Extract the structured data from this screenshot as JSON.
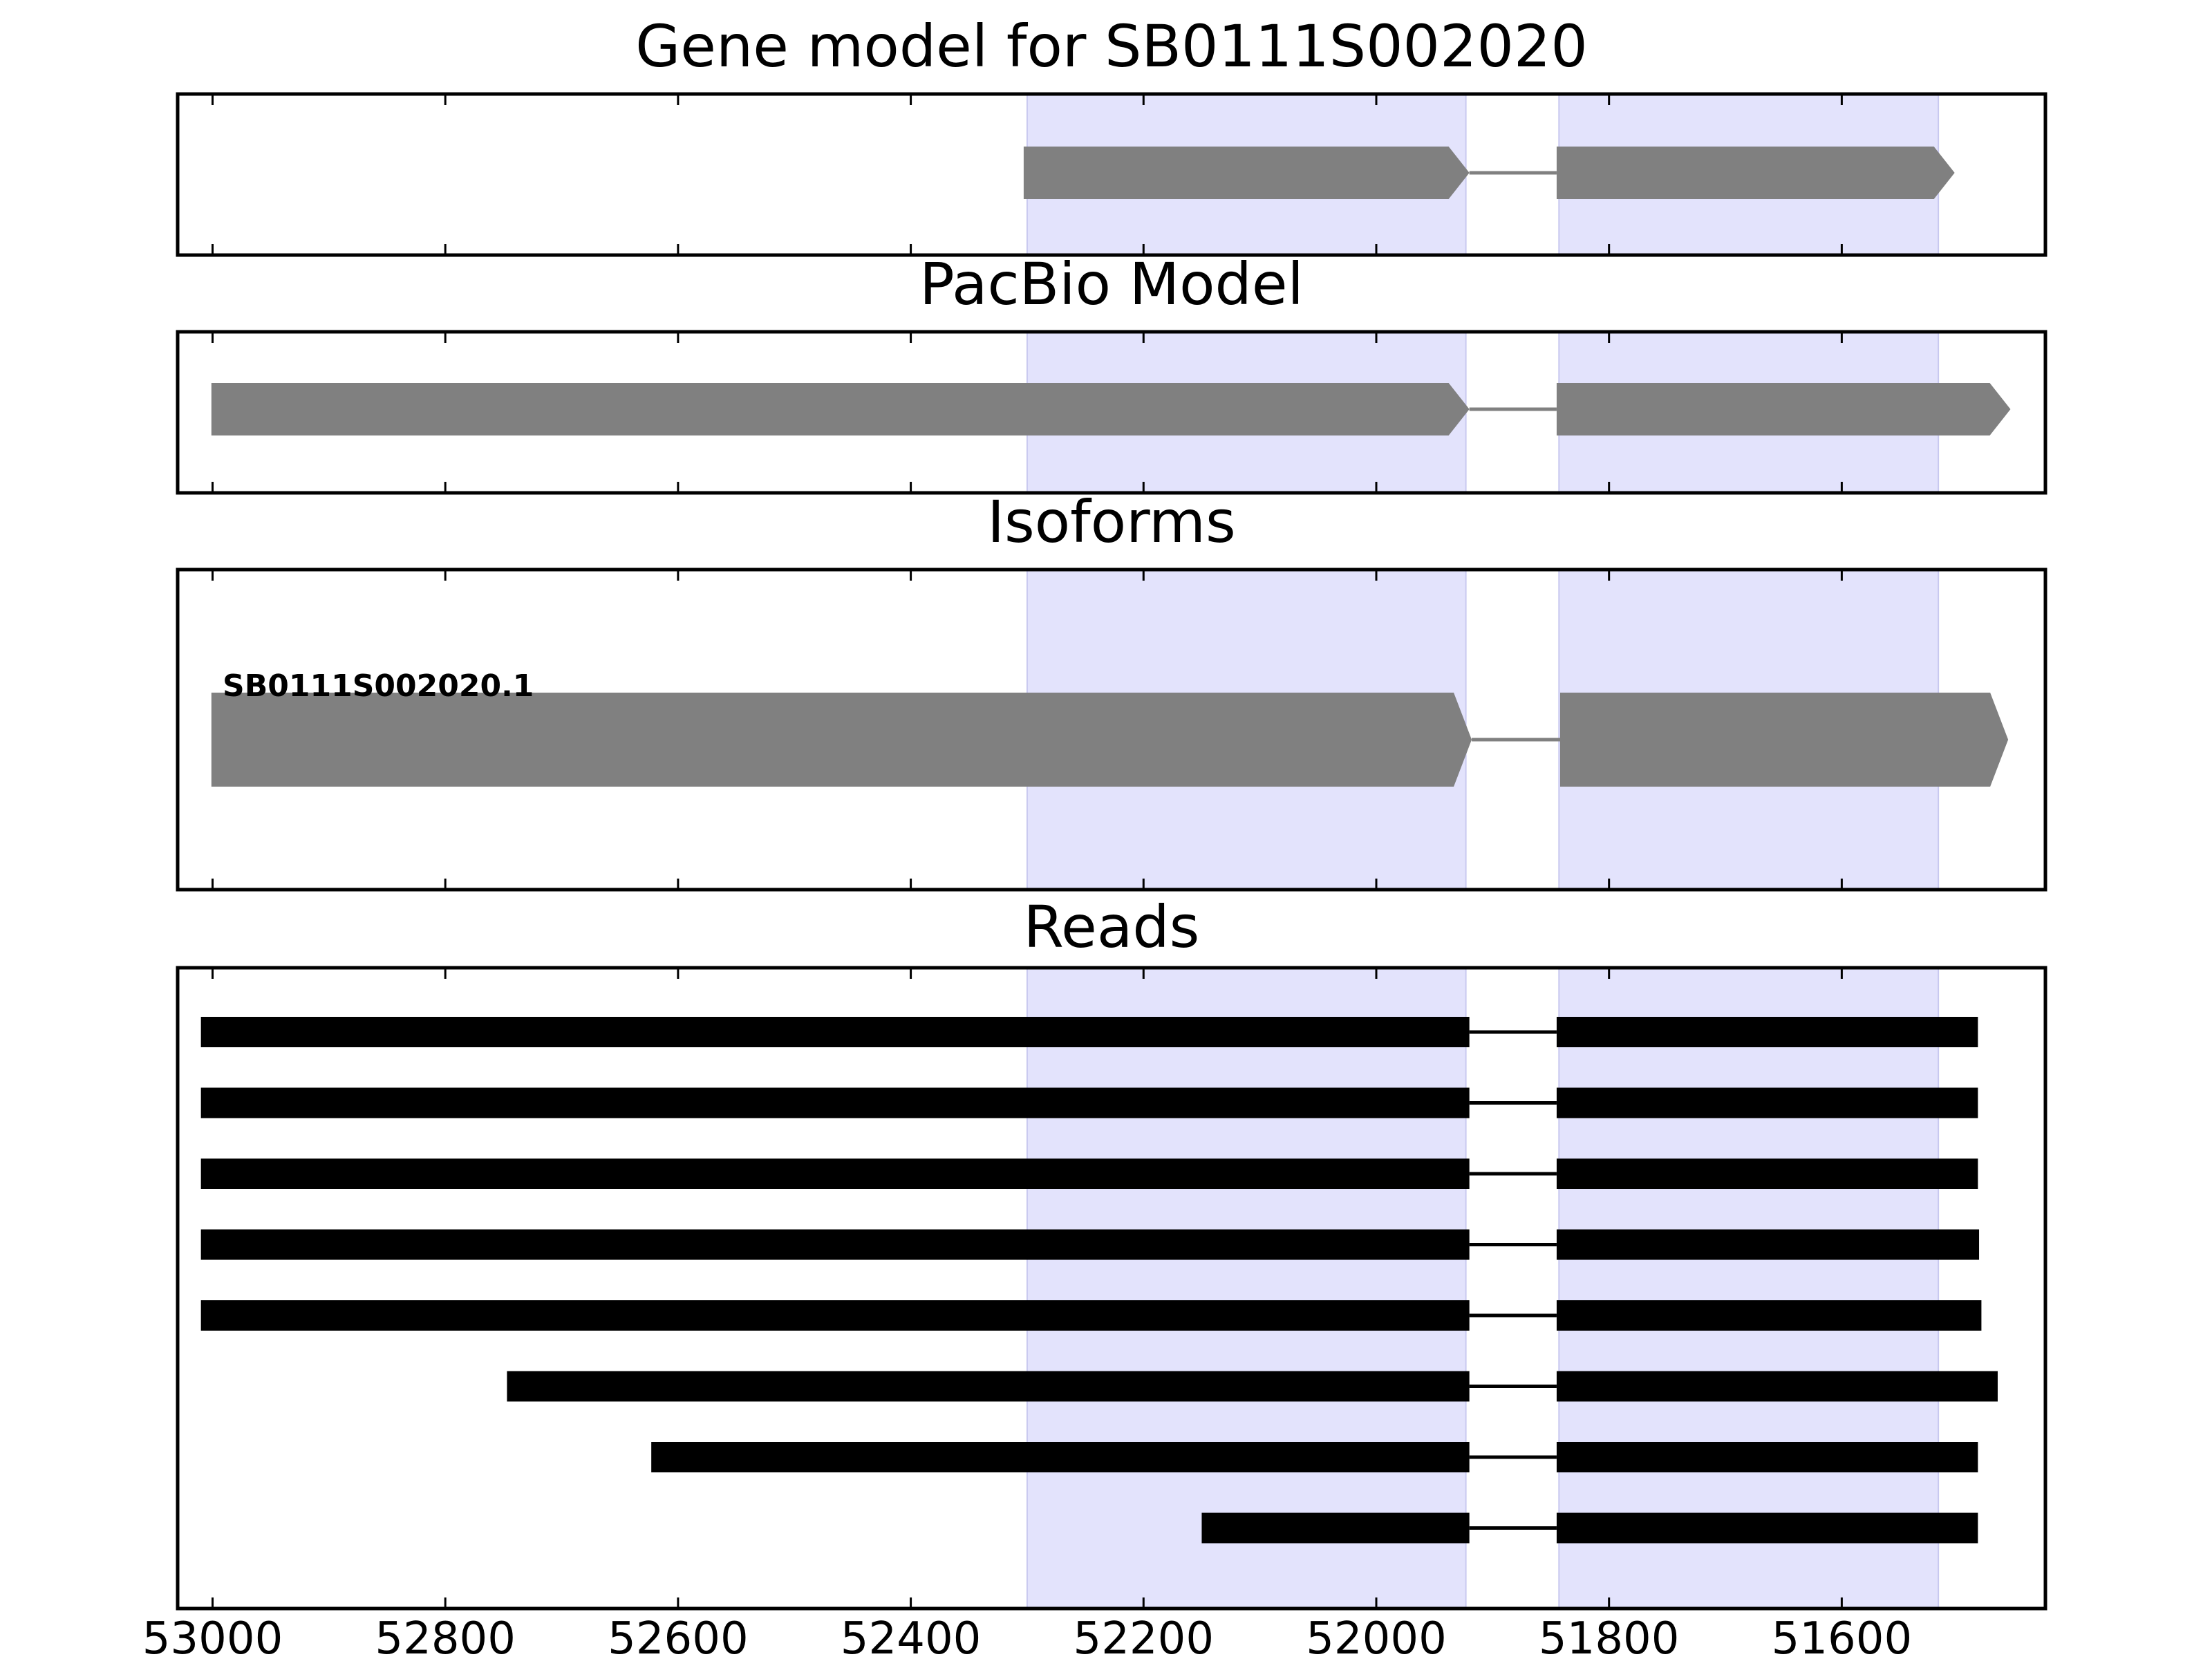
{
  "figure": {
    "panels": [
      {
        "key": "gene_model",
        "title": "Gene model for SB0111S002020"
      },
      {
        "key": "pacbio_model",
        "title": "PacBio Model"
      },
      {
        "key": "isoforms",
        "title": "Isoforms"
      },
      {
        "key": "reads",
        "title": "Reads"
      }
    ],
    "x_axis": {
      "reversed": true,
      "range": [
        53030,
        51425
      ],
      "ticks": [
        53000,
        52800,
        52600,
        52400,
        52200,
        52000,
        51800,
        51600
      ],
      "tick_labels": [
        "53000",
        "52800",
        "52600",
        "52400",
        "52200",
        "52000",
        "51800",
        "51600"
      ]
    },
    "highlight_regions": [
      {
        "start": 52300,
        "end": 51923
      },
      {
        "start": 51843,
        "end": 51517
      }
    ],
    "gene_model": {
      "strand": "-",
      "exons": [
        {
          "start": 52303,
          "end": 51920
        },
        {
          "start": 51845,
          "end": 51503
        }
      ]
    },
    "pacbio_model": {
      "strand": "-",
      "exons": [
        {
          "start": 53001,
          "end": 51920
        },
        {
          "start": 51845,
          "end": 51455
        }
      ]
    },
    "isoforms": [
      {
        "label": "SB0111S002020.1",
        "strand": "-",
        "exons": [
          {
            "start": 53001,
            "end": 51918
          },
          {
            "start": 51842,
            "end": 51457
          }
        ]
      }
    ],
    "reads": [
      {
        "exons": [
          {
            "start": 53010,
            "end": 51920
          },
          {
            "start": 51845,
            "end": 51483
          }
        ]
      },
      {
        "exons": [
          {
            "start": 53010,
            "end": 51920
          },
          {
            "start": 51845,
            "end": 51483
          }
        ]
      },
      {
        "exons": [
          {
            "start": 53010,
            "end": 51920
          },
          {
            "start": 51845,
            "end": 51483
          }
        ]
      },
      {
        "exons": [
          {
            "start": 53010,
            "end": 51920
          },
          {
            "start": 51845,
            "end": 51482
          }
        ]
      },
      {
        "exons": [
          {
            "start": 53010,
            "end": 51920
          },
          {
            "start": 51845,
            "end": 51480
          }
        ]
      },
      {
        "exons": [
          {
            "start": 52747,
            "end": 51920
          },
          {
            "start": 51845,
            "end": 51466
          }
        ]
      },
      {
        "exons": [
          {
            "start": 52623,
            "end": 51920
          },
          {
            "start": 51845,
            "end": 51483
          }
        ]
      },
      {
        "exons": [
          {
            "start": 52150,
            "end": 51920
          },
          {
            "start": 51845,
            "end": 51483
          }
        ]
      }
    ],
    "colors": {
      "highlight": "#e3e3fc",
      "highlight_edge": "#c9c9f0",
      "model_fill": "#808080",
      "model_line": "#808080",
      "read_fill": "#000000",
      "axis": "#000000"
    }
  }
}
